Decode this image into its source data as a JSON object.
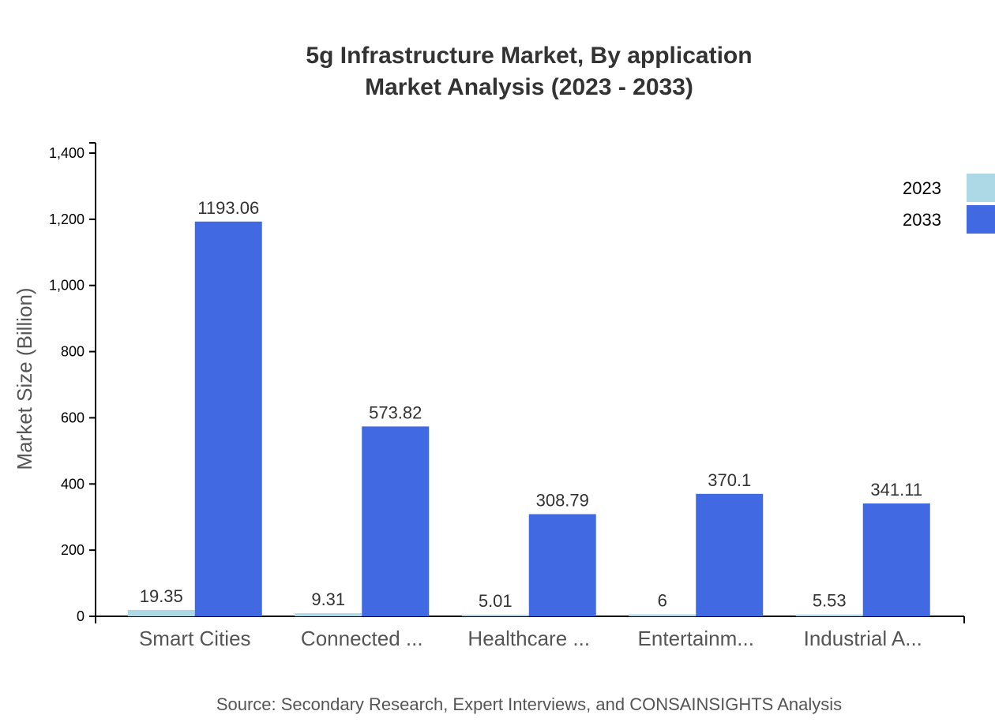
{
  "chart_data": {
    "type": "bar",
    "title": "5g Infrastructure Market, By application",
    "subtitle": "Market Analysis (2023 - 2033)",
    "ylabel": "Market Size (Billion)",
    "xlabel": "",
    "ylim": [
      0,
      1400
    ],
    "yticks": [
      0,
      200,
      400,
      600,
      800,
      1000,
      1200,
      1400
    ],
    "ytick_labels": [
      "0",
      "200",
      "400",
      "600",
      "800",
      "1,000",
      "1,200",
      "1,400"
    ],
    "categories": [
      "Smart Cities",
      "Connected ...",
      "Healthcare ...",
      "Entertainm...",
      "Industrial A..."
    ],
    "series": [
      {
        "name": "2023",
        "color": "#add8e6",
        "values": [
          19.35,
          9.31,
          5.01,
          6,
          5.53
        ]
      },
      {
        "name": "2033",
        "color": "#4169e1",
        "values": [
          1193.06,
          573.82,
          308.79,
          370.1,
          341.11
        ]
      }
    ],
    "legend_placement": "top-right",
    "grid": false,
    "source": "Source: Secondary Research, Expert Interviews, and CONSAINSIGHTS Analysis"
  }
}
